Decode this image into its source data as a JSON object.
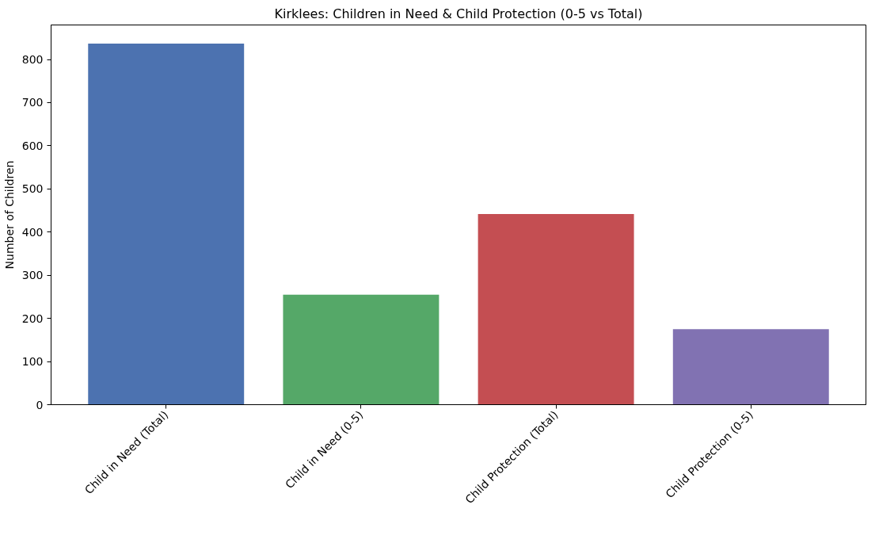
{
  "chart_data": {
    "type": "bar",
    "title": "Kirklees: Children in Need & Child Protection (0-5 vs Total)",
    "ylabel": "Number of Children",
    "categories": [
      "Child in Need (Total)",
      "Child in Need (0-5)",
      "Child Protection (Total)",
      "Child Protection (0-5)"
    ],
    "values": [
      837,
      255,
      442,
      175
    ],
    "colors": [
      "#4c72b0",
      "#55a868",
      "#c44e52",
      "#8172b2"
    ],
    "ylim": [
      0,
      880
    ],
    "yticks": [
      0,
      100,
      200,
      300,
      400,
      500,
      600,
      700,
      800
    ],
    "grid": false
  }
}
